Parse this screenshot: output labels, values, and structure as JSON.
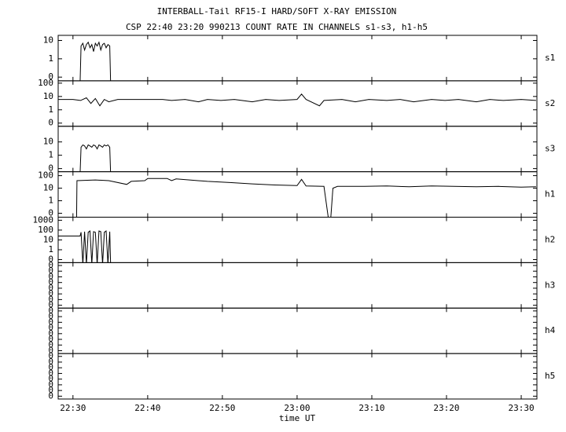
{
  "chart_data": [
    {
      "type": "line",
      "title": "INTERBALL-Tail RF15-I HARD/SOFT X-RAY EMISSION",
      "subtitle": "CSP 22:40 23:20 990213  COUNT RATE IN CHANNELS s1-s3, h1-h5",
      "label": "s1",
      "log": true,
      "color": "#000",
      "xlim": [
        22.467,
        23.535
      ],
      "ylim": [
        0.063,
        19
      ],
      "yticks": [
        10,
        1,
        {
          "value": 0.1,
          "label": "0"
        }
      ],
      "x": [
        22.516,
        22.518,
        22.522,
        22.526,
        22.53,
        22.534,
        22.538,
        22.542,
        22.546,
        22.55,
        22.554,
        22.558,
        22.562,
        22.566,
        22.57,
        22.574,
        22.578,
        22.582,
        22.584
      ],
      "values": [
        0,
        5,
        7,
        3,
        6,
        8,
        4,
        6,
        2.5,
        7,
        5,
        8,
        3,
        6,
        7,
        4,
        6,
        5,
        0
      ]
    },
    {
      "type": "line",
      "label": "s2",
      "log": true,
      "color": "#000",
      "xlim": [
        22.467,
        23.535
      ],
      "ylim": [
        0.058,
        150
      ],
      "yticks": [
        100,
        10,
        1,
        {
          "value": 0.1,
          "label": "0"
        }
      ],
      "x": [
        22.467,
        22.5,
        22.517,
        22.53,
        22.54,
        22.55,
        22.56,
        22.57,
        22.58,
        22.6,
        22.65,
        22.7,
        22.72,
        22.75,
        22.78,
        22.8,
        22.83,
        22.86,
        22.9,
        22.93,
        22.96,
        23.0,
        23.01,
        23.02,
        23.05,
        23.06,
        23.1,
        23.13,
        23.16,
        23.2,
        23.23,
        23.26,
        23.3,
        23.33,
        23.36,
        23.4,
        23.43,
        23.46,
        23.5,
        23.533
      ],
      "values": [
        6,
        6,
        5,
        8,
        3,
        7,
        2,
        6,
        4,
        6,
        6,
        6,
        5,
        6,
        4,
        6,
        5,
        6,
        4,
        6,
        5,
        6,
        15,
        6,
        2,
        5,
        6,
        4,
        6,
        5,
        6,
        4,
        6,
        5,
        6,
        4,
        6,
        5,
        6,
        5
      ]
    },
    {
      "type": "line",
      "label": "s3",
      "log": true,
      "color": "#000",
      "xlim": [
        22.467,
        23.535
      ],
      "ylim": [
        0.058,
        150
      ],
      "yticks": [
        10,
        1,
        {
          "value": 0.1,
          "label": "0"
        }
      ],
      "x": [
        22.516,
        22.518,
        22.522,
        22.526,
        22.53,
        22.534,
        22.538,
        22.542,
        22.546,
        22.55,
        22.554,
        22.558,
        22.562,
        22.566,
        22.57,
        22.574,
        22.578,
        22.582,
        22.584
      ],
      "values": [
        0,
        4,
        6,
        5,
        3,
        6,
        5,
        4,
        6,
        5,
        3,
        6,
        5,
        4,
        6,
        5,
        6,
        4,
        0
      ]
    },
    {
      "type": "line",
      "label": "h1",
      "log": true,
      "color": "#000",
      "xlim": [
        22.467,
        23.535
      ],
      "ylim": [
        0.049,
        205
      ],
      "yticks": [
        100,
        10,
        1,
        {
          "value": 0.1,
          "label": "0"
        }
      ],
      "x": [
        22.508,
        22.509,
        22.55,
        22.58,
        22.62,
        22.63,
        22.66,
        22.667,
        22.71,
        22.72,
        22.73,
        22.76,
        22.8,
        22.85,
        22.9,
        22.95,
        23.0,
        23.01,
        23.02,
        23.06,
        23.07,
        23.075,
        23.08,
        23.09,
        23.15,
        23.2,
        23.25,
        23.3,
        23.35,
        23.4,
        23.45,
        23.5,
        23.533
      ],
      "values": [
        0,
        40,
        45,
        40,
        20,
        35,
        40,
        60,
        60,
        40,
        55,
        45,
        35,
        28,
        22,
        18,
        16,
        50,
        15,
        14,
        0,
        0,
        10,
        14,
        14,
        15,
        13,
        15,
        14,
        13,
        14,
        12,
        13
      ]
    },
    {
      "type": "line",
      "label": "h2",
      "log": true,
      "color": "#000",
      "xlim": [
        22.467,
        23.535
      ],
      "ylim": [
        0.049,
        2050
      ],
      "yticks": [
        1000,
        100,
        10,
        1,
        {
          "value": 0.1,
          "label": "0"
        }
      ],
      "x": [
        22.467,
        22.516,
        22.518,
        22.522,
        22.526,
        22.53,
        22.534,
        22.538,
        22.542,
        22.546,
        22.55,
        22.554,
        22.558,
        22.562,
        22.566,
        22.57,
        22.574,
        22.578,
        22.582,
        22.584
      ],
      "values": [
        25,
        25,
        60,
        0,
        70,
        0,
        60,
        80,
        0,
        70,
        60,
        0,
        80,
        70,
        0,
        60,
        80,
        0,
        70,
        0
      ]
    },
    {
      "type": "line",
      "label": "h3",
      "log": false,
      "color": "#000",
      "xlim": [
        22.467,
        23.535
      ],
      "ylim": [
        0,
        8
      ],
      "yticks": [
        {
          "value": 7.5,
          "label": "0"
        },
        {
          "value": 6.5,
          "label": "0"
        },
        {
          "value": 5.5,
          "label": "0"
        },
        {
          "value": 4.5,
          "label": "0"
        },
        {
          "value": 3.5,
          "label": "0"
        },
        {
          "value": 2.5,
          "label": "0"
        },
        {
          "value": 1.5,
          "label": "0"
        },
        {
          "value": 0.5,
          "label": "0"
        }
      ]
    },
    {
      "type": "line",
      "label": "h4",
      "log": false,
      "color": "#000",
      "xlim": [
        22.467,
        23.535
      ],
      "ylim": [
        0,
        8
      ],
      "yticks": [
        {
          "value": 7.5,
          "label": "0"
        },
        {
          "value": 6.5,
          "label": "0"
        },
        {
          "value": 5.5,
          "label": "0"
        },
        {
          "value": 4.5,
          "label": "0"
        },
        {
          "value": 3.5,
          "label": "0"
        },
        {
          "value": 2.5,
          "label": "0"
        },
        {
          "value": 1.5,
          "label": "0"
        },
        {
          "value": 0.5,
          "label": "0"
        }
      ]
    },
    {
      "type": "line",
      "label": "h5",
      "log": false,
      "color": "#000",
      "xlim": [
        22.467,
        23.535
      ],
      "ylim": [
        0,
        8
      ],
      "yticks": [
        {
          "value": 7.5,
          "label": "0"
        },
        {
          "value": 6.5,
          "label": "0"
        },
        {
          "value": 5.5,
          "label": "0"
        },
        {
          "value": 4.5,
          "label": "0"
        },
        {
          "value": 3.5,
          "label": "0"
        },
        {
          "value": 2.5,
          "label": "0"
        },
        {
          "value": 1.5,
          "label": "0"
        },
        {
          "value": 0.5,
          "label": "0"
        }
      ],
      "xlabel": "time UT",
      "xticks": [
        {
          "value": 22.5,
          "label": "22:30"
        },
        {
          "value": 22.6667,
          "label": "22:40"
        },
        {
          "value": 22.8333,
          "label": "22:50"
        },
        {
          "value": 23.0,
          "label": "23:00"
        },
        {
          "value": 23.1667,
          "label": "23:10"
        },
        {
          "value": 23.3333,
          "label": "23:20"
        },
        {
          "value": 23.5,
          "label": "23:30"
        }
      ]
    }
  ]
}
